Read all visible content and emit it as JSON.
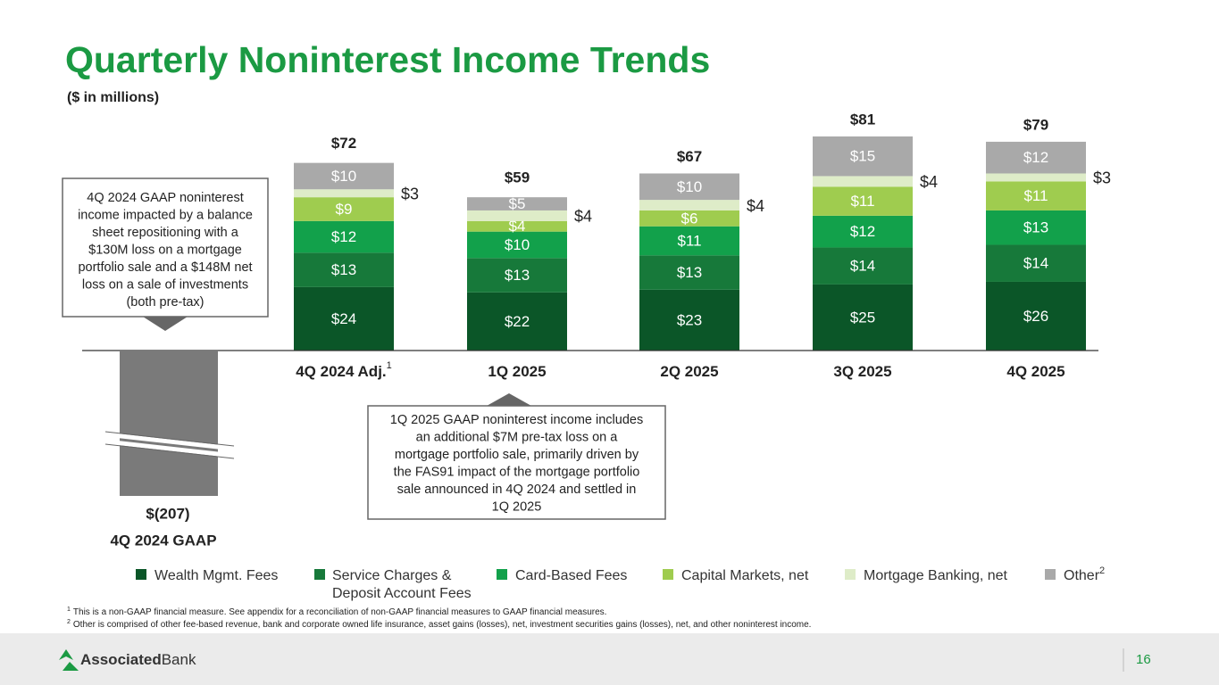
{
  "header": {
    "title": "Quarterly Noninterest Income Trends",
    "subtitle": "($ in millions)"
  },
  "chart_data": {
    "type": "stacked-bar",
    "categories": [
      "4Q 2024 Adj.",
      "1Q 2025",
      "2Q 2025",
      "3Q 2025",
      "4Q 2025"
    ],
    "category_note": "1",
    "ylim": [
      0,
      81
    ],
    "series": [
      {
        "name": "Wealth Mgmt. Fees",
        "color": "#0b5628",
        "values": [
          24,
          22,
          23,
          25,
          26
        ],
        "value_labels": [
          "$24",
          "$22",
          "$23",
          "$25",
          "$26"
        ]
      },
      {
        "name": "Service Charges & Deposit Account Fees",
        "color": "#17793a",
        "values": [
          13,
          13,
          13,
          14,
          14
        ],
        "value_labels": [
          "$13",
          "$13",
          "$13",
          "$14",
          "$14"
        ]
      },
      {
        "name": "Card-Based Fees",
        "color": "#12a14b",
        "values": [
          12,
          10,
          11,
          12,
          13
        ],
        "value_labels": [
          "$12",
          "$10",
          "$11",
          "$12",
          "$13"
        ]
      },
      {
        "name": "Capital Markets, net",
        "color": "#9fcc4f",
        "values": [
          9,
          4,
          6,
          11,
          11
        ],
        "value_labels": [
          "$9",
          "$4",
          "$6",
          "$11",
          "$11"
        ]
      },
      {
        "name": "Mortgage Banking, net",
        "color": "#deecc8",
        "label_position": "outside",
        "values": [
          3,
          4,
          4,
          4,
          3
        ],
        "value_labels": [
          "$3",
          "$4",
          "$4",
          "$4",
          "$3"
        ]
      },
      {
        "name": "Other",
        "note": "2",
        "color": "#a9a9a9",
        "values": [
          10,
          5,
          10,
          15,
          12
        ],
        "value_labels": [
          "$10",
          "$5",
          "$10",
          "$15",
          "$12"
        ]
      }
    ],
    "totals": [
      72,
      59,
      67,
      81,
      79
    ],
    "total_labels": [
      "$72",
      "$59",
      "$67",
      "$81",
      "$79"
    ],
    "gaap_bar": {
      "category": "4Q 2024 GAAP",
      "value": -207,
      "value_label": "$(207)",
      "color": "#7a7a7a"
    }
  },
  "callouts": [
    {
      "lines": [
        "4Q 2024 GAAP noninterest",
        "income impacted by a balance",
        "sheet repositioning with a",
        "$130M loss on a mortgage",
        "portfolio sale and a $148M net",
        "loss on a sale of investments",
        "(both pre-tax)"
      ]
    },
    {
      "lines": [
        "1Q 2025 GAAP noninterest income includes",
        "an additional $7M pre-tax loss on a",
        "mortgage portfolio sale, primarily driven by",
        "the FAS91 impact of the mortgage portfolio",
        "sale announced in 4Q 2024 and settled in",
        "1Q 2025"
      ]
    }
  ],
  "footnotes": [
    {
      "mark": "1",
      "text": "This is a non-GAAP financial measure. See appendix for a reconciliation of non-GAAP financial measures to GAAP financial measures."
    },
    {
      "mark": "2",
      "text": "Other is comprised of other fee-based revenue, bank and corporate owned life insurance, asset gains (losses), net, investment securities gains (losses), net, and other noninterest income."
    }
  ],
  "footer": {
    "brand_bold": "Associated",
    "brand_light": "Bank",
    "page": "16"
  }
}
